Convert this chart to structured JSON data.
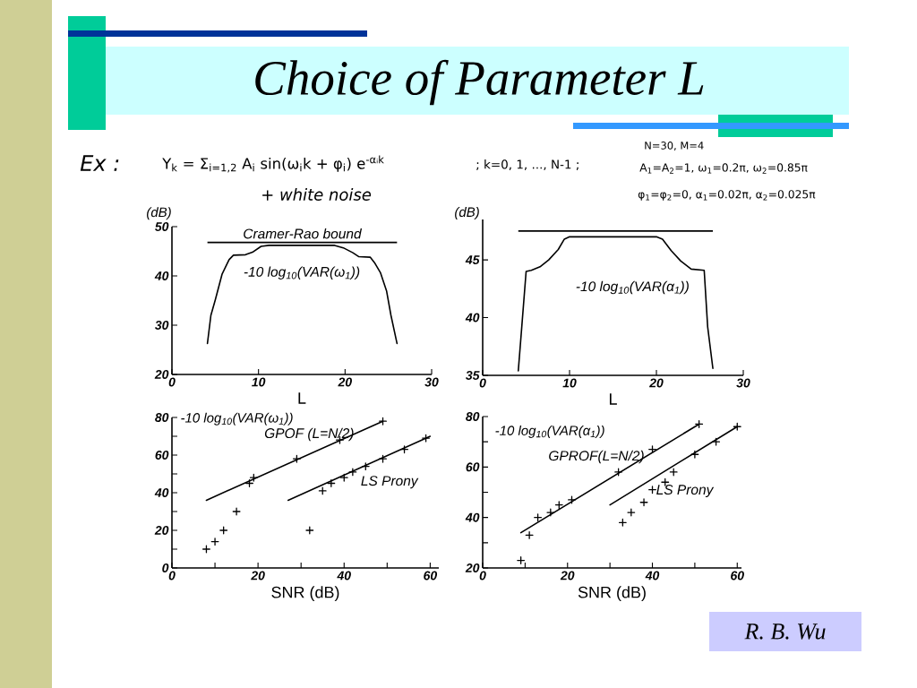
{
  "chart_data": [
    {
      "type": "other",
      "title": "Choice of Parameter L",
      "annotations": [
        "Ex :",
        "Y$_{k}$ = Σ$_{i=1,2}$ A$_{i}$ sin(ω$_{i}$k + φ$_{i}$) e$^{-αᵢk}$",
        "; k=0, 1, ..., N-1 ;",
        "+ white noise",
        "N=30, M=4",
        "A$_{1}$=A$_{2}$=1, ω$_{1}$=0.2π, ω$_{2}$=0.85π",
        "φ$_{1}$=φ$_{2}$=0, α$_{1}$=0.02π, α$_{2}$=0.025π",
        "R. B. Wu"
      ]
    },
    {
      "type": "line",
      "xlabel": "L",
      "ylabel": "(dB)",
      "xlim": [
        0,
        30
      ],
      "ylim": [
        20,
        50
      ],
      "xticks": [
        0,
        10,
        20,
        30
      ],
      "yticks": [
        20,
        30,
        40,
        50
      ],
      "series": [
        {
          "name": "-10 log$_{10}$(VAR(ω$_{1}$))",
          "color": "#000000",
          "x": [
            4.1,
            4.5,
            5.0,
            5.8,
            6.6,
            7.1,
            8.5,
            9.3,
            10.3,
            11.2,
            18.8,
            19.8,
            20.9,
            21.6,
            22.9,
            23.4,
            24.1,
            24.8,
            25.3,
            26.0
          ],
          "values": [
            26.3,
            32.0,
            35.1,
            40.4,
            43.3,
            44.2,
            44.3,
            44.8,
            46.0,
            46.2,
            46.2,
            45.7,
            44.7,
            43.9,
            43.8,
            42.7,
            40.6,
            36.9,
            32.0,
            26.3
          ]
        }
      ],
      "ref_lines": [
        {
          "axis": "y",
          "value": 46.8,
          "label": "Cramer-Rao bound"
        }
      ]
    },
    {
      "type": "line",
      "xlabel": "L",
      "ylabel": "(dB)",
      "xlim": [
        0,
        30
      ],
      "ylim": [
        35,
        48.5
      ],
      "xticks": [
        0,
        10,
        20,
        30
      ],
      "yticks": [
        35,
        40,
        45
      ],
      "series": [
        {
          "name": "-10 log$_{10}$(VAR(α$_{1}$))",
          "color": "#000000",
          "x": [
            4.1,
            4.5,
            5.0,
            5.6,
            6.6,
            7.6,
            8.7,
            9.4,
            10.0,
            20.0,
            20.7,
            21.7,
            22.8,
            24.0,
            25.5,
            25.9,
            26.5
          ],
          "values": [
            35.4,
            39.2,
            44.0,
            44.1,
            44.4,
            45.0,
            45.9,
            46.8,
            47.0,
            47.0,
            46.8,
            45.8,
            44.9,
            44.2,
            44.1,
            39.2,
            35.6
          ]
        }
      ],
      "ref_lines": [
        {
          "axis": "y",
          "value": 47.5
        }
      ]
    },
    {
      "type": "scatter",
      "xlabel": "SNR (dB)",
      "ylabel": "-10 log$_{10}$(VAR(ω$_{1}$))",
      "xlim": [
        0,
        62
      ],
      "ylim": [
        0,
        80
      ],
      "xticks": [
        0,
        {
          "value": 10,
          "label": null
        },
        20,
        {
          "value": 30,
          "label": null
        },
        40,
        {
          "value": 50,
          "label": null
        },
        60
      ],
      "yticks": [
        0,
        {
          "value": 10,
          "label": null
        },
        20,
        {
          "value": 30,
          "label": null
        },
        40,
        {
          "value": 50,
          "label": null
        },
        60,
        {
          "value": 70,
          "label": null
        },
        80
      ],
      "series": [
        {
          "name": "GPOF (L=N/2)",
          "type": "line",
          "color": "#000000",
          "x": [
            8,
            49
          ],
          "values": [
            36,
            78
          ]
        },
        {
          "type": "scatter",
          "marker": "cross",
          "color": "#000000",
          "x": [
            8,
            10,
            12,
            15,
            18,
            19,
            29,
            39,
            49
          ],
          "values": [
            10,
            14,
            20,
            30,
            45,
            48,
            58,
            68,
            78
          ]
        },
        {
          "name": "LS Prony",
          "type": "line",
          "color": "#000000",
          "x": [
            27,
            60
          ],
          "values": [
            36,
            70
          ]
        },
        {
          "type": "scatter",
          "marker": "cross",
          "color": "#000000",
          "x": [
            32,
            35,
            37,
            40,
            42,
            45,
            49,
            54,
            59
          ],
          "values": [
            20,
            41,
            45,
            48,
            51,
            54,
            58,
            63,
            69
          ]
        }
      ]
    },
    {
      "type": "scatter",
      "xlabel": "SNR (dB)",
      "ylabel": "-10 log$_{10}$(VAR(α$_{1}$))",
      "xlim": [
        0,
        61
      ],
      "ylim": [
        20,
        80
      ],
      "xticks": [
        0,
        {
          "value": 10,
          "label": null
        },
        20,
        {
          "value": 30,
          "label": null
        },
        40,
        {
          "value": 50,
          "label": null
        },
        60
      ],
      "yticks": [
        20,
        {
          "value": 30,
          "label": null
        },
        40,
        {
          "value": 50,
          "label": null
        },
        60,
        {
          "value": 70,
          "label": null
        },
        80
      ],
      "series": [
        {
          "name": "GPROF(L=N/2)",
          "type": "line",
          "color": "#000000",
          "x": [
            9,
            51
          ],
          "values": [
            34,
            77
          ]
        },
        {
          "type": "scatter",
          "marker": "cross",
          "color": "#000000",
          "x": [
            9,
            11,
            13,
            16,
            18,
            21,
            32,
            40,
            51
          ],
          "values": [
            23,
            33,
            40,
            42,
            45,
            47,
            58,
            67,
            77
          ]
        },
        {
          "name": "LS Prony",
          "type": "line",
          "color": "#000000",
          "x": [
            30,
            60
          ],
          "values": [
            45,
            76
          ]
        },
        {
          "type": "scatter",
          "marker": "cross",
          "color": "#000000",
          "x": [
            33,
            35,
            38,
            40,
            43,
            45,
            50,
            55,
            60
          ],
          "values": [
            38,
            42,
            46,
            51,
            54,
            58,
            65,
            70,
            76
          ]
        }
      ]
    }
  ]
}
